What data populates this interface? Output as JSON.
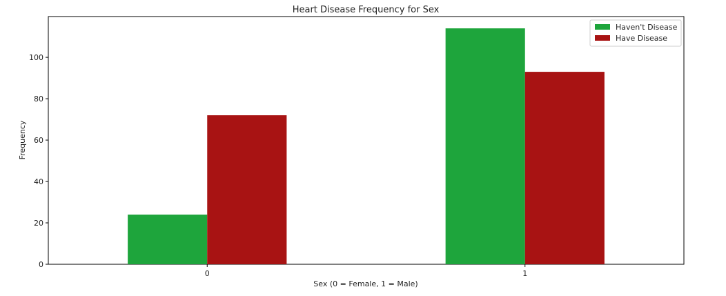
{
  "chart_data": {
    "type": "bar",
    "title": "Heart Disease Frequency for Sex",
    "xlabel": "Sex (0 = Female, 1 = Male)",
    "ylabel": "Frequency",
    "categories": [
      "0",
      "1"
    ],
    "series": [
      {
        "name": "Haven't Disease",
        "values": [
          24,
          114
        ],
        "color": "#1ea53c"
      },
      {
        "name": "Have Disease",
        "values": [
          72,
          93
        ],
        "color": "#a81313"
      }
    ],
    "ylim": [
      0,
      119.7
    ],
    "yticks": [
      0,
      20,
      40,
      60,
      80,
      100
    ],
    "grid": false,
    "legend_position": "top-right"
  }
}
